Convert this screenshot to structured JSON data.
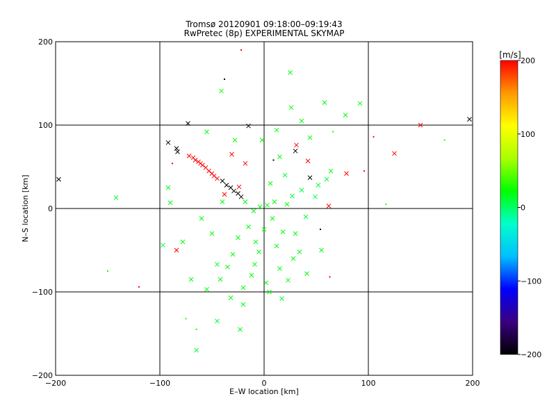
{
  "chart_data": {
    "type": "scatter",
    "title": "Tromsø 20120901 09:18:00–09:19:43",
    "subtitle": "RwPretec (8p) EXPERIMENTAL SKYMAP",
    "xlabel": "E–W location [km]",
    "ylabel": "N–S location [km]",
    "xlim": [
      -200,
      200
    ],
    "ylim": [
      -200,
      200
    ],
    "xticks": [
      -200,
      -100,
      0,
      100,
      200
    ],
    "yticks": [
      -200,
      -100,
      0,
      100,
      200
    ],
    "xtick_labels": [
      "−200",
      "−100",
      "0",
      "100",
      "200"
    ],
    "ytick_labels": [
      "−200",
      "−100",
      "0",
      "100",
      "200"
    ],
    "grid": true,
    "colorbar": {
      "label": "[m/s]",
      "min": -200,
      "max": 200,
      "ticks": [
        200,
        100,
        0,
        -100,
        -200
      ],
      "tick_labels": [
        "200",
        "100",
        "0",
        "−100",
        "−200"
      ],
      "colormap": [
        "#000000",
        "#3a0080",
        "#0000ff",
        "#00bfff",
        "#00ffcc",
        "#00ff00",
        "#aaff00",
        "#ffff00",
        "#ff9900",
        "#ff0000"
      ]
    },
    "points": [
      {
        "x": -197,
        "y": 35,
        "v": -200,
        "m": "x"
      },
      {
        "x": 197,
        "y": 107,
        "v": -200,
        "m": "x"
      },
      {
        "x": -73,
        "y": 102,
        "v": -200,
        "m": "x"
      },
      {
        "x": -15,
        "y": 99,
        "v": -200,
        "m": "x"
      },
      {
        "x": -92,
        "y": 79,
        "v": -200,
        "m": "x"
      },
      {
        "x": -84,
        "y": 72,
        "v": -200,
        "m": "x"
      },
      {
        "x": -83,
        "y": 68,
        "v": -200,
        "m": "x"
      },
      {
        "x": -40,
        "y": 33,
        "v": -200,
        "m": "x"
      },
      {
        "x": -36,
        "y": 28,
        "v": -200,
        "m": "x"
      },
      {
        "x": -32,
        "y": 25,
        "v": -200,
        "m": "x"
      },
      {
        "x": -29,
        "y": 21,
        "v": -200,
        "m": "x"
      },
      {
        "x": -25,
        "y": 18,
        "v": -200,
        "m": "x"
      },
      {
        "x": -22,
        "y": 14,
        "v": -200,
        "m": "x"
      },
      {
        "x": 30,
        "y": 69,
        "v": -200,
        "m": "x"
      },
      {
        "x": 44,
        "y": 37,
        "v": -200,
        "m": "x"
      },
      {
        "x": -38,
        "y": 155,
        "v": -200,
        "m": "."
      },
      {
        "x": 9,
        "y": 58,
        "v": -200,
        "m": "."
      },
      {
        "x": 54,
        "y": -25,
        "v": -200,
        "m": "."
      },
      {
        "x": 150,
        "y": 100,
        "v": 200,
        "m": "x"
      },
      {
        "x": 125,
        "y": 66,
        "v": 200,
        "m": "x"
      },
      {
        "x": 79,
        "y": 42,
        "v": 200,
        "m": "x"
      },
      {
        "x": 62,
        "y": 3,
        "v": 200,
        "m": "x"
      },
      {
        "x": 31,
        "y": 76,
        "v": 200,
        "m": "x"
      },
      {
        "x": 42,
        "y": 57,
        "v": 200,
        "m": "x"
      },
      {
        "x": -18,
        "y": 54,
        "v": 200,
        "m": "x"
      },
      {
        "x": -84,
        "y": -50,
        "v": 200,
        "m": "x"
      },
      {
        "x": -72,
        "y": 63,
        "v": 200,
        "m": "x"
      },
      {
        "x": -68,
        "y": 61,
        "v": 200,
        "m": "x"
      },
      {
        "x": -66,
        "y": 58,
        "v": 200,
        "m": "x"
      },
      {
        "x": -63,
        "y": 56,
        "v": 200,
        "m": "x"
      },
      {
        "x": -61,
        "y": 54,
        "v": 200,
        "m": "x"
      },
      {
        "x": -59,
        "y": 52,
        "v": 200,
        "m": "x"
      },
      {
        "x": -56,
        "y": 49,
        "v": 200,
        "m": "x"
      },
      {
        "x": -53,
        "y": 45,
        "v": 200,
        "m": "x"
      },
      {
        "x": -50,
        "y": 42,
        "v": 200,
        "m": "x"
      },
      {
        "x": -48,
        "y": 39,
        "v": 200,
        "m": "x"
      },
      {
        "x": -45,
        "y": 36,
        "v": 200,
        "m": "x"
      },
      {
        "x": -31,
        "y": 65,
        "v": 200,
        "m": "x"
      },
      {
        "x": -24,
        "y": 26,
        "v": 200,
        "m": "x"
      },
      {
        "x": -38,
        "y": 17,
        "v": 200,
        "m": "x"
      },
      {
        "x": -22,
        "y": 190,
        "v": 200,
        "m": "."
      },
      {
        "x": -120,
        "y": -94,
        "v": 200,
        "m": "."
      },
      {
        "x": 63,
        "y": -82,
        "v": 200,
        "m": "."
      },
      {
        "x": 105,
        "y": 86,
        "v": 200,
        "m": "."
      },
      {
        "x": 96,
        "y": 45,
        "v": 200,
        "m": "."
      },
      {
        "x": -88,
        "y": 54,
        "v": 200,
        "m": "."
      },
      {
        "x": -41,
        "y": 141,
        "v": 20,
        "m": "x"
      },
      {
        "x": -55,
        "y": 92,
        "v": 20,
        "m": "x"
      },
      {
        "x": 25,
        "y": 163,
        "v": 20,
        "m": "x"
      },
      {
        "x": 26,
        "y": 121,
        "v": 20,
        "m": "x"
      },
      {
        "x": 58,
        "y": 127,
        "v": 20,
        "m": "x"
      },
      {
        "x": 78,
        "y": 112,
        "v": 20,
        "m": "x"
      },
      {
        "x": 92,
        "y": 126,
        "v": 20,
        "m": "x"
      },
      {
        "x": 36,
        "y": 105,
        "v": 20,
        "m": "x"
      },
      {
        "x": -142,
        "y": 13,
        "v": 10,
        "m": "x"
      },
      {
        "x": -92,
        "y": 25,
        "v": 20,
        "m": "x"
      },
      {
        "x": -97,
        "y": -44,
        "v": 10,
        "m": "x"
      },
      {
        "x": -90,
        "y": 7,
        "v": 20,
        "m": "x"
      },
      {
        "x": -78,
        "y": -40,
        "v": 20,
        "m": "x"
      },
      {
        "x": -70,
        "y": -85,
        "v": 20,
        "m": "x"
      },
      {
        "x": -55,
        "y": -97,
        "v": 20,
        "m": "x"
      },
      {
        "x": -45,
        "y": -67,
        "v": 10,
        "m": "x"
      },
      {
        "x": -32,
        "y": -107,
        "v": 20,
        "m": "x"
      },
      {
        "x": -20,
        "y": -115,
        "v": 20,
        "m": "x"
      },
      {
        "x": -23,
        "y": -145,
        "v": 20,
        "m": "x"
      },
      {
        "x": -45,
        "y": -135,
        "v": 10,
        "m": "x"
      },
      {
        "x": -65,
        "y": -170,
        "v": 10,
        "m": "x"
      },
      {
        "x": -9,
        "y": -67,
        "v": 20,
        "m": "x"
      },
      {
        "x": 2,
        "y": -89,
        "v": 20,
        "m": "x"
      },
      {
        "x": 17,
        "y": -108,
        "v": 10,
        "m": "x"
      },
      {
        "x": 23,
        "y": -86,
        "v": 20,
        "m": "x"
      },
      {
        "x": 34,
        "y": -52,
        "v": 20,
        "m": "x"
      },
      {
        "x": 41,
        "y": -78,
        "v": 20,
        "m": "x"
      },
      {
        "x": 55,
        "y": -50,
        "v": 20,
        "m": "x"
      },
      {
        "x": 52,
        "y": 28,
        "v": 10,
        "m": "x"
      },
      {
        "x": 60,
        "y": 35,
        "v": 10,
        "m": "x"
      },
      {
        "x": 64,
        "y": 45,
        "v": 20,
        "m": "x"
      },
      {
        "x": 49,
        "y": 14,
        "v": 10,
        "m": "x"
      },
      {
        "x": 27,
        "y": 15,
        "v": 10,
        "m": "x"
      },
      {
        "x": 10,
        "y": 8,
        "v": 20,
        "m": "x"
      },
      {
        "x": 3,
        "y": 4,
        "v": 20,
        "m": "x"
      },
      {
        "x": -4,
        "y": 2,
        "v": 20,
        "m": "x"
      },
      {
        "x": -10,
        "y": -3,
        "v": 20,
        "m": "x"
      },
      {
        "x": 8,
        "y": -12,
        "v": 20,
        "m": "x"
      },
      {
        "x": -15,
        "y": -22,
        "v": 20,
        "m": "x"
      },
      {
        "x": 18,
        "y": -28,
        "v": 20,
        "m": "x"
      },
      {
        "x": -25,
        "y": -35,
        "v": 20,
        "m": "x"
      },
      {
        "x": 12,
        "y": -45,
        "v": 20,
        "m": "x"
      },
      {
        "x": -5,
        "y": -52,
        "v": 20,
        "m": "x"
      },
      {
        "x": 28,
        "y": -60,
        "v": 20,
        "m": "x"
      },
      {
        "x": -35,
        "y": -70,
        "v": 20,
        "m": "x"
      },
      {
        "x": -12,
        "y": -80,
        "v": 20,
        "m": "x"
      },
      {
        "x": 6,
        "y": 30,
        "v": 20,
        "m": "x"
      },
      {
        "x": 20,
        "y": 40,
        "v": 10,
        "m": "x"
      },
      {
        "x": 36,
        "y": 22,
        "v": 10,
        "m": "x"
      },
      {
        "x": 15,
        "y": 62,
        "v": 20,
        "m": "x"
      },
      {
        "x": -2,
        "y": 82,
        "v": 20,
        "m": "x"
      },
      {
        "x": -28,
        "y": 82,
        "v": 20,
        "m": "x"
      },
      {
        "x": 44,
        "y": 85,
        "v": 20,
        "m": "x"
      },
      {
        "x": 12,
        "y": 94,
        "v": 20,
        "m": "x"
      },
      {
        "x": -40,
        "y": 8,
        "v": 20,
        "m": "x"
      },
      {
        "x": -60,
        "y": -12,
        "v": 20,
        "m": "x"
      },
      {
        "x": -50,
        "y": -30,
        "v": 20,
        "m": "x"
      },
      {
        "x": -30,
        "y": -55,
        "v": 20,
        "m": "x"
      },
      {
        "x": -42,
        "y": -85,
        "v": 20,
        "m": "x"
      },
      {
        "x": 30,
        "y": -30,
        "v": 20,
        "m": "x"
      },
      {
        "x": 40,
        "y": -10,
        "v": 10,
        "m": "x"
      },
      {
        "x": 22,
        "y": 5,
        "v": 20,
        "m": "x"
      },
      {
        "x": -18,
        "y": 8,
        "v": 20,
        "m": "x"
      },
      {
        "x": 0,
        "y": -25,
        "v": 20,
        "m": "x"
      },
      {
        "x": -8,
        "y": -40,
        "v": 20,
        "m": "x"
      },
      {
        "x": 15,
        "y": -72,
        "v": 20,
        "m": "x"
      },
      {
        "x": -20,
        "y": -95,
        "v": 20,
        "m": "x"
      },
      {
        "x": 5,
        "y": -100,
        "v": 20,
        "m": "x"
      },
      {
        "x": 117,
        "y": 5,
        "v": 30,
        "m": "."
      },
      {
        "x": 173,
        "y": 82,
        "v": 30,
        "m": "."
      },
      {
        "x": 66,
        "y": 92,
        "v": 30,
        "m": "."
      },
      {
        "x": -75,
        "y": -132,
        "v": 30,
        "m": "."
      },
      {
        "x": -65,
        "y": -145,
        "v": 20,
        "m": "."
      },
      {
        "x": -150,
        "y": -75,
        "v": 20,
        "m": "."
      }
    ]
  }
}
